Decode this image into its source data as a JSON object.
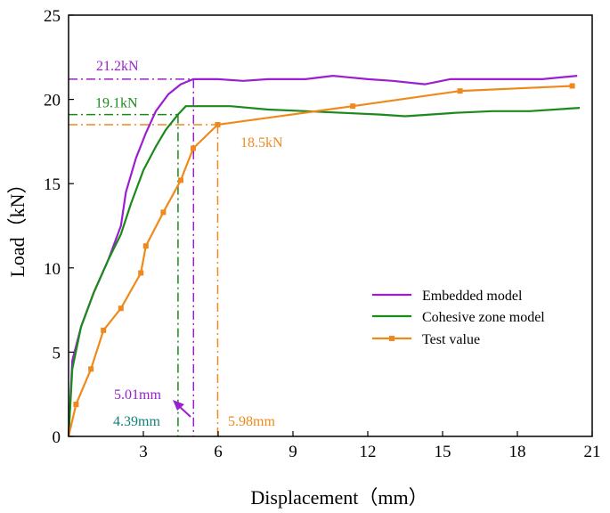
{
  "chart_data": {
    "type": "line",
    "title": "",
    "xlabel": "Displacement（mm）",
    "ylabel": "Load（kN）",
    "xlim": [
      0,
      21
    ],
    "ylim": [
      0,
      25
    ],
    "xticks": [
      3,
      6,
      9,
      12,
      15,
      18,
      21
    ],
    "yticks": [
      0,
      5,
      10,
      15,
      20,
      25
    ],
    "grid": false,
    "legend_position": "lower-right",
    "series": [
      {
        "name": "Embedded model",
        "color": "#9a1fd0",
        "marker": "none",
        "points": [
          [
            0,
            0
          ],
          [
            0.15,
            4.5
          ],
          [
            0.5,
            6.5
          ],
          [
            1.0,
            8.5
          ],
          [
            1.6,
            10.5
          ],
          [
            2.1,
            12.5
          ],
          [
            2.3,
            14.5
          ],
          [
            2.7,
            16.5
          ],
          [
            3.1,
            18.0
          ],
          [
            3.5,
            19.3
          ],
          [
            4.0,
            20.3
          ],
          [
            4.5,
            20.9
          ],
          [
            5.0,
            21.2
          ],
          [
            6.0,
            21.2
          ],
          [
            7.0,
            21.1
          ],
          [
            8.0,
            21.2
          ],
          [
            9.5,
            21.2
          ],
          [
            10.6,
            21.4
          ],
          [
            12.0,
            21.2
          ],
          [
            13.0,
            21.1
          ],
          [
            14.3,
            20.9
          ],
          [
            15.3,
            21.2
          ],
          [
            17.0,
            21.2
          ],
          [
            19.0,
            21.2
          ],
          [
            20.4,
            21.4
          ]
        ]
      },
      {
        "name": "Cohesive zone model",
        "color": "#1a8a1a",
        "marker": "none",
        "points": [
          [
            0,
            0
          ],
          [
            0.15,
            4.0
          ],
          [
            0.5,
            6.5
          ],
          [
            1.0,
            8.5
          ],
          [
            1.6,
            10.5
          ],
          [
            2.1,
            12.0
          ],
          [
            2.5,
            13.8
          ],
          [
            3.0,
            15.8
          ],
          [
            3.5,
            17.2
          ],
          [
            3.9,
            18.2
          ],
          [
            4.39,
            19.1
          ],
          [
            4.7,
            19.6
          ],
          [
            5.5,
            19.6
          ],
          [
            6.5,
            19.6
          ],
          [
            8.0,
            19.4
          ],
          [
            9.5,
            19.3
          ],
          [
            11.0,
            19.2
          ],
          [
            12.5,
            19.1
          ],
          [
            13.5,
            19.0
          ],
          [
            14.5,
            19.1
          ],
          [
            15.5,
            19.2
          ],
          [
            17.0,
            19.3
          ],
          [
            18.5,
            19.3
          ],
          [
            20.5,
            19.5
          ]
        ]
      },
      {
        "name": "Test value",
        "color": "#f0891c",
        "marker": "square",
        "points": [
          [
            0,
            0
          ],
          [
            0.3,
            1.9
          ],
          [
            0.9,
            4.0
          ],
          [
            1.4,
            6.3
          ],
          [
            2.1,
            7.6
          ],
          [
            2.9,
            9.7
          ],
          [
            3.1,
            11.3
          ],
          [
            3.8,
            13.3
          ],
          [
            4.5,
            15.2
          ],
          [
            5.0,
            17.1
          ],
          [
            5.98,
            18.5
          ],
          [
            11.4,
            19.6
          ],
          [
            15.7,
            20.5
          ],
          [
            20.2,
            20.8
          ]
        ]
      }
    ],
    "annotations": [
      {
        "text": "21.2kN",
        "color": "#9a1fd0"
      },
      {
        "text": "19.1kN",
        "color": "#1a8a1a"
      },
      {
        "text": "18.5kN",
        "color": "#f0891c"
      },
      {
        "text": "5.01mm",
        "color": "#9a1fd0"
      },
      {
        "text": "4.39mm",
        "color": "#13807a"
      },
      {
        "text": "5.98mm",
        "color": "#f0891c"
      }
    ],
    "reference_lines": [
      {
        "series": "Embedded model",
        "x": 5.01,
        "y": 21.2
      },
      {
        "series": "Cohesive zone model",
        "x": 4.39,
        "y": 19.1
      },
      {
        "series": "Test value",
        "x": 5.98,
        "y": 18.5
      }
    ]
  }
}
